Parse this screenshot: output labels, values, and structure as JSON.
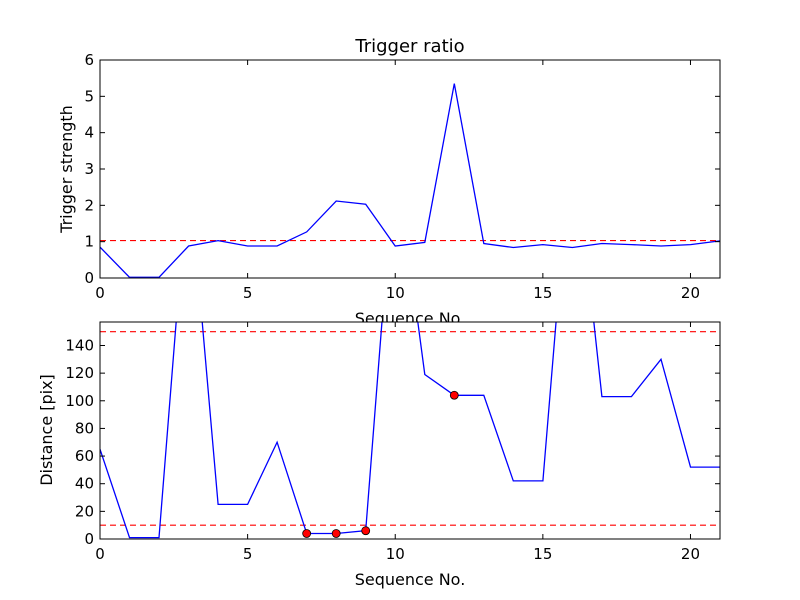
{
  "chart_data": [
    {
      "type": "line",
      "title": "Trigger ratio",
      "xlabel": "Sequence No.",
      "ylabel": "Trigger strength",
      "xlim": [
        0,
        21
      ],
      "ylim": [
        0,
        6
      ],
      "x_ticks": [
        0,
        5,
        10,
        15,
        20
      ],
      "y_ticks": [
        0,
        1,
        2,
        3,
        4,
        5,
        6
      ],
      "grid": false,
      "series": [
        {
          "color": "#0000ff",
          "x": [
            0,
            1,
            2,
            3,
            4,
            5,
            6,
            7,
            8,
            9,
            10,
            11,
            12,
            13,
            14,
            15,
            16,
            17,
            18,
            19,
            20,
            21
          ],
          "y": [
            0.85,
            0.02,
            0.02,
            0.88,
            1.03,
            0.88,
            0.88,
            1.27,
            2.12,
            2.03,
            0.88,
            0.98,
            5.35,
            0.95,
            0.84,
            0.92,
            0.84,
            0.95,
            0.92,
            0.88,
            0.92,
            1.02
          ]
        }
      ],
      "threshold_lines": [
        {
          "y": 1.03,
          "color": "#ff0000",
          "style": "dashed"
        }
      ],
      "markers": []
    },
    {
      "type": "line",
      "title": "",
      "xlabel": "Sequence No.",
      "ylabel": "Distance [pix]",
      "xlim": [
        0,
        21
      ],
      "ylim": [
        0,
        157
      ],
      "x_ticks": [
        0,
        5,
        10,
        15,
        20
      ],
      "y_ticks": [
        0,
        20,
        40,
        60,
        80,
        100,
        120,
        140
      ],
      "grid": false,
      "series": [
        {
          "color": "#0000ff",
          "x": [
            0,
            1,
            2,
            3,
            4,
            5,
            6,
            7,
            8,
            9,
            10,
            11,
            12,
            13,
            14,
            15,
            16,
            17,
            18,
            19,
            20,
            21
          ],
          "y": [
            65,
            1,
            1,
            270,
            25,
            25,
            70,
            4,
            4,
            6,
            280,
            119,
            104,
            104,
            42,
            42,
            300,
            103,
            103,
            130,
            52,
            52
          ]
        }
      ],
      "threshold_lines": [
        {
          "y": 150,
          "color": "#ff0000",
          "style": "dashed"
        },
        {
          "y": 10,
          "color": "#ff0000",
          "style": "dashed"
        }
      ],
      "markers": [
        {
          "x": 7,
          "y": 4,
          "color": "#ff0000"
        },
        {
          "x": 8,
          "y": 4,
          "color": "#ff0000"
        },
        {
          "x": 9,
          "y": 6,
          "color": "#ff0000"
        },
        {
          "x": 12,
          "y": 104,
          "color": "#ff0000"
        }
      ]
    }
  ]
}
